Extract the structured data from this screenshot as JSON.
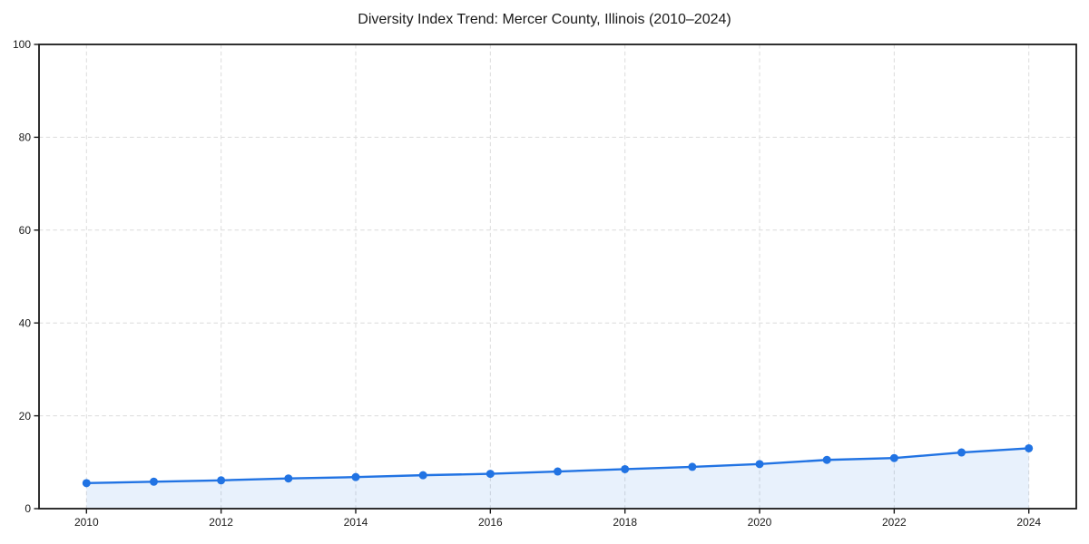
{
  "chart_data": {
    "type": "line",
    "title": "Diversity Index Trend: Mercer County, Illinois (2010–2024)",
    "x": [
      2010,
      2011,
      2012,
      2013,
      2014,
      2015,
      2016,
      2017,
      2018,
      2019,
      2020,
      2021,
      2022,
      2023,
      2024
    ],
    "series": [
      {
        "name": "Diversity Index",
        "values": [
          5.5,
          5.8,
          6.1,
          6.5,
          6.8,
          7.2,
          7.5,
          8.0,
          8.5,
          9.0,
          9.6,
          10.5,
          10.9,
          12.1,
          13.0
        ]
      }
    ],
    "xlabel": "",
    "ylabel": "",
    "xlim": [
      2010,
      2024
    ],
    "ylim": [
      0,
      100
    ],
    "yticks": [
      0,
      20,
      40,
      60,
      80,
      100
    ],
    "xticks": [
      2010,
      2012,
      2014,
      2016,
      2018,
      2020,
      2022,
      2024
    ],
    "grid": true,
    "grid_style": "dashed",
    "legend": false,
    "marker": "circle",
    "colors": {
      "line": "#2173e3",
      "marker": "#2173e3",
      "fill": "rgba(33, 115, 227, 0.10)",
      "grid": "#dcdcdc",
      "axis": "#1a1a1a",
      "text": "#1a1a1a",
      "background": "#ffffff"
    }
  }
}
